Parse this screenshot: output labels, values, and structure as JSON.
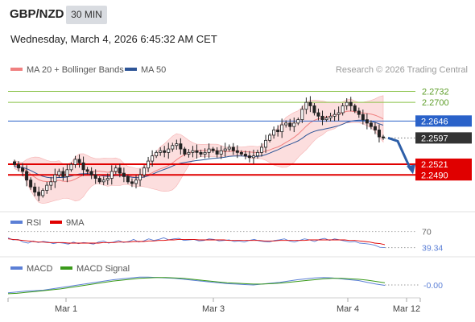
{
  "header": {
    "pair": "GBP/NZD",
    "timeframe": "30 MIN",
    "datetime": "Wednesday, March 4, 2026 6:45:32 AM CET"
  },
  "legend": {
    "ma20": "MA 20 + Bollinger Bands",
    "ma50": "MA 50",
    "credit": "Research © 2026 Trading Central",
    "rsi": "RSI",
    "rsi_ma": "9MA",
    "macd": "MACD",
    "macd_signal": "MACD Signal"
  },
  "colors": {
    "ma20": "#f08080",
    "bollinger_fill": "#fbd3d3",
    "ma50": "#2e5597",
    "resistance": "#2a62c9",
    "support": "#e00000",
    "green_levels": "#8bc34a",
    "price_label": "#333333",
    "arrow": "#2e5fa8",
    "candle_up": "#ffffff",
    "candle_down": "#222222"
  },
  "chart_data": [
    {
      "type": "candlestick",
      "y_range": [
        2.2395,
        2.2775
      ],
      "x_ticks": [
        "Mar 1",
        "Mar 3",
        "Mar 4",
        "Mar 12"
      ],
      "levels": [
        {
          "label": "2.2732",
          "value": 2.2732,
          "kind": "resistance-minor"
        },
        {
          "label": "2.2700",
          "value": 2.27,
          "kind": "resistance-minor"
        },
        {
          "label": "2.2646",
          "value": 2.2646,
          "kind": "pivot"
        },
        {
          "label": "2.2597",
          "value": 2.2597,
          "kind": "last-price"
        },
        {
          "label": "2.2521",
          "value": 2.2521,
          "kind": "support"
        },
        {
          "label": "2.2490",
          "value": 2.249,
          "kind": "support"
        }
      ],
      "closes": [
        2.252,
        2.251,
        2.25,
        2.2475,
        2.2455,
        2.244,
        2.243,
        2.2445,
        2.246,
        2.247,
        2.249,
        2.25,
        2.2485,
        2.2505,
        2.252,
        2.2535,
        2.2525,
        2.2505,
        2.25,
        2.249,
        2.248,
        2.247,
        2.2475,
        2.248,
        2.25,
        2.251,
        2.2495,
        2.2485,
        2.247,
        2.2465,
        2.2475,
        2.249,
        2.251,
        2.253,
        2.2545,
        2.2555,
        2.256,
        2.2555,
        2.2565,
        2.2575,
        2.258,
        2.2565,
        2.255,
        2.2555,
        2.256,
        2.2555,
        2.255,
        2.2555,
        2.2565,
        2.256,
        2.255,
        2.256,
        2.2565,
        2.257,
        2.256,
        2.2555,
        2.255,
        2.2545,
        2.254,
        2.2545,
        2.2555,
        2.257,
        2.259,
        2.2605,
        2.262,
        2.2615,
        2.2635,
        2.264,
        2.263,
        2.264,
        2.265,
        2.268,
        2.27,
        2.269,
        2.267,
        2.266,
        2.265,
        2.2655,
        2.266,
        2.2665,
        2.267,
        2.269,
        2.27,
        2.269,
        2.2675,
        2.2665,
        2.265,
        2.264,
        2.263,
        2.262,
        2.26,
        2.2597
      ]
    },
    {
      "type": "line",
      "title": "RSI",
      "y_range": [
        0,
        100
      ],
      "ticks": [
        {
          "label": "70",
          "value": 70
        },
        {
          "label": "39.34",
          "value": 39.34
        }
      ],
      "series": [
        {
          "name": "RSI",
          "values": [
            58,
            54,
            55,
            50,
            48,
            52,
            49,
            51,
            50,
            47,
            49,
            48,
            46,
            50,
            47,
            49,
            48,
            46,
            50,
            52,
            48,
            50,
            53,
            49,
            51,
            55,
            50,
            52,
            56,
            53,
            55,
            58,
            54,
            56,
            57,
            53,
            54,
            55,
            52,
            53,
            56,
            55,
            52,
            53,
            54,
            51,
            52,
            50,
            53,
            55,
            52,
            51,
            50,
            53,
            54,
            56,
            52,
            50,
            53,
            56,
            54,
            51,
            55,
            57,
            53,
            56,
            54,
            52,
            50,
            51,
            48,
            47,
            46,
            44,
            40,
            39.34
          ]
        },
        {
          "name": "9MA",
          "values": [
            56,
            55,
            54,
            53,
            52,
            51,
            50,
            50,
            49,
            49,
            49,
            49,
            48,
            48,
            48,
            48,
            48,
            48,
            48,
            49,
            49,
            49,
            50,
            50,
            50,
            51,
            51,
            51,
            52,
            52,
            53,
            53,
            54,
            54,
            55,
            55,
            55,
            55,
            54,
            54,
            54,
            54,
            54,
            54,
            53,
            53,
            53,
            53,
            53,
            53,
            53,
            52,
            52,
            52,
            53,
            53,
            53,
            53,
            53,
            53,
            54,
            54,
            54,
            54,
            54,
            54,
            54,
            54,
            53,
            53,
            52,
            51,
            50,
            48,
            47,
            45
          ]
        }
      ]
    },
    {
      "type": "line",
      "title": "MACD",
      "ticks": [
        {
          "label": "-0.00",
          "value": 0
        }
      ],
      "series": [
        {
          "name": "MACD",
          "values": [
            -0.0018,
            -0.0016,
            -0.0014,
            -0.0013,
            -0.0012,
            -0.0009,
            -0.0006,
            -0.0003,
            0.0,
            0.0003,
            0.0006,
            0.0009,
            0.0012,
            0.0014,
            0.0016,
            0.0018,
            0.0018,
            0.0017,
            0.0016,
            0.0015,
            0.0013,
            0.0011,
            0.0009,
            0.0007,
            0.0005,
            0.0003,
            0.0002,
            0.0001,
            0.0,
            0.0002,
            0.0004,
            0.0006,
            0.0009,
            0.0012,
            0.0014,
            0.0016,
            0.0017,
            0.0016,
            0.0014,
            0.0012,
            0.001,
            0.0006,
            0.0002,
            -0.0001
          ]
        },
        {
          "name": "MACD Signal",
          "values": [
            -0.002,
            -0.0019,
            -0.0017,
            -0.0015,
            -0.0013,
            -0.0011,
            -0.0009,
            -0.0006,
            -0.0003,
            0.0,
            0.0003,
            0.0006,
            0.0009,
            0.0011,
            0.0013,
            0.0015,
            0.0016,
            0.0017,
            0.0017,
            0.0016,
            0.0015,
            0.0013,
            0.0011,
            0.0009,
            0.0007,
            0.0005,
            0.0004,
            0.0003,
            0.0002,
            0.0002,
            0.0003,
            0.0004,
            0.0006,
            0.0008,
            0.001,
            0.0012,
            0.0014,
            0.0015,
            0.0015,
            0.0014,
            0.0013,
            0.0011,
            0.0008,
            0.0005
          ]
        }
      ]
    }
  ]
}
